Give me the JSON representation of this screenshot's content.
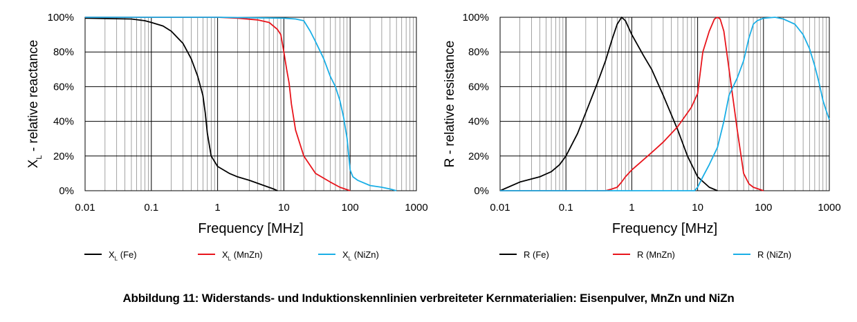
{
  "caption": "Abbildung 11: Widerstands- und Induktionskennlinien verbreiteter Kernmaterialien: Eisenpulver, MnZn und NiZn",
  "colors": {
    "fe": "#000000",
    "mnzn": "#e8141b",
    "nizn": "#19aee6"
  },
  "chart_data": [
    {
      "type": "line",
      "xscale": "log",
      "xlim": [
        0.01,
        1000
      ],
      "ylim": [
        0,
        100
      ],
      "xlabel": "Frequency [MHz]",
      "ylabel_main": "X",
      "ylabel_sub": "L",
      "ylabel_rest": " - relative reactance",
      "x_ticks": [
        "0.01",
        "0.1",
        "1",
        "10",
        "100",
        "1000"
      ],
      "y_ticks": [
        "0%",
        "20%",
        "40%",
        "60%",
        "80%",
        "100%"
      ],
      "grid": true,
      "legend_position": "bottom",
      "series": [
        {
          "name_main": "X",
          "name_sub": "L",
          "name_rest": "  (Fe)",
          "color": "#000000",
          "x": [
            0.01,
            0.05,
            0.08,
            0.1,
            0.15,
            0.2,
            0.3,
            0.4,
            0.5,
            0.6,
            0.65,
            0.7,
            0.8,
            1.0,
            1.5,
            2,
            3,
            5,
            7,
            8
          ],
          "y": [
            99.5,
            99,
            98,
            97,
            95,
            92,
            85,
            76,
            66,
            55,
            45,
            33,
            20,
            14,
            10,
            8,
            6,
            3,
            1,
            0
          ]
        },
        {
          "name_main": "X",
          "name_sub": "L",
          "name_rest": "  (MnZn)",
          "color": "#e8141b",
          "x": [
            0.01,
            1,
            2,
            4,
            6,
            8,
            9,
            10,
            11,
            12,
            13,
            15,
            20,
            30,
            50,
            70,
            100
          ],
          "y": [
            100,
            100,
            99.5,
            98.5,
            97,
            93,
            90,
            80,
            70,
            62,
            50,
            35,
            20,
            10,
            5,
            2,
            0
          ]
        },
        {
          "name_main": "X",
          "name_sub": "L",
          "name_rest": "  (NiZn)",
          "color": "#19aee6",
          "x": [
            0.01,
            1,
            10,
            15,
            20,
            25,
            30,
            40,
            50,
            60,
            70,
            80,
            90,
            100,
            110,
            130,
            200,
            300,
            400,
            500
          ],
          "y": [
            100,
            100,
            99.5,
            99,
            98,
            92,
            86,
            76,
            66,
            60,
            52,
            42,
            30,
            12,
            8,
            6,
            3,
            2,
            1,
            0
          ]
        }
      ]
    },
    {
      "type": "line",
      "xscale": "log",
      "xlim": [
        0.01,
        1000
      ],
      "ylim": [
        0,
        100
      ],
      "xlabel": "Frequency [MHz]",
      "ylabel_main": "R - relative resistance",
      "ylabel_sub": "",
      "ylabel_rest": "",
      "x_ticks": [
        "0.01",
        "0.1",
        "1",
        "10",
        "100",
        "1000"
      ],
      "y_ticks": [
        "0%",
        "20%",
        "40%",
        "60%",
        "80%",
        "100%"
      ],
      "grid": true,
      "legend_position": "bottom",
      "series": [
        {
          "name_main": "R",
          "name_sub": "",
          "name_rest": "  (Fe)",
          "color": "#000000",
          "x": [
            0.01,
            0.02,
            0.04,
            0.06,
            0.08,
            0.1,
            0.15,
            0.2,
            0.3,
            0.4,
            0.5,
            0.6,
            0.7,
            0.8,
            1.0,
            1.5,
            2,
            3,
            5,
            7,
            10,
            15,
            20
          ],
          "y": [
            0,
            5,
            8,
            11,
            15,
            20,
            33,
            45,
            62,
            75,
            87,
            96,
            100,
            98,
            90,
            78,
            70,
            55,
            35,
            20,
            8,
            2,
            0
          ]
        },
        {
          "name_main": "R",
          "name_sub": "",
          "name_rest": "  (MnZn)",
          "color": "#e8141b",
          "x": [
            0.01,
            0.4,
            0.5,
            0.6,
            0.7,
            0.8,
            1.0,
            2,
            3,
            5,
            8,
            10,
            12,
            15,
            18,
            20,
            22,
            25,
            30,
            40,
            50,
            60,
            70,
            100
          ],
          "y": [
            0,
            0,
            1,
            2,
            5,
            8,
            12,
            22,
            28,
            37,
            48,
            56,
            80,
            92,
            99,
            100,
            99,
            92,
            70,
            35,
            10,
            4,
            2,
            0
          ]
        },
        {
          "name_main": "R",
          "name_sub": "",
          "name_rest": "  (NiZn)",
          "color": "#19aee6",
          "x": [
            0.01,
            9,
            10,
            12,
            15,
            20,
            25,
            30,
            40,
            50,
            60,
            70,
            80,
            100,
            150,
            200,
            300,
            400,
            500,
            600,
            700,
            800,
            900,
            1000
          ],
          "y": [
            0,
            0,
            2,
            8,
            15,
            25,
            40,
            55,
            65,
            75,
            88,
            96,
            98,
            99.5,
            100,
            99,
            96,
            90,
            82,
            72,
            62,
            52,
            46,
            41
          ]
        }
      ]
    }
  ]
}
